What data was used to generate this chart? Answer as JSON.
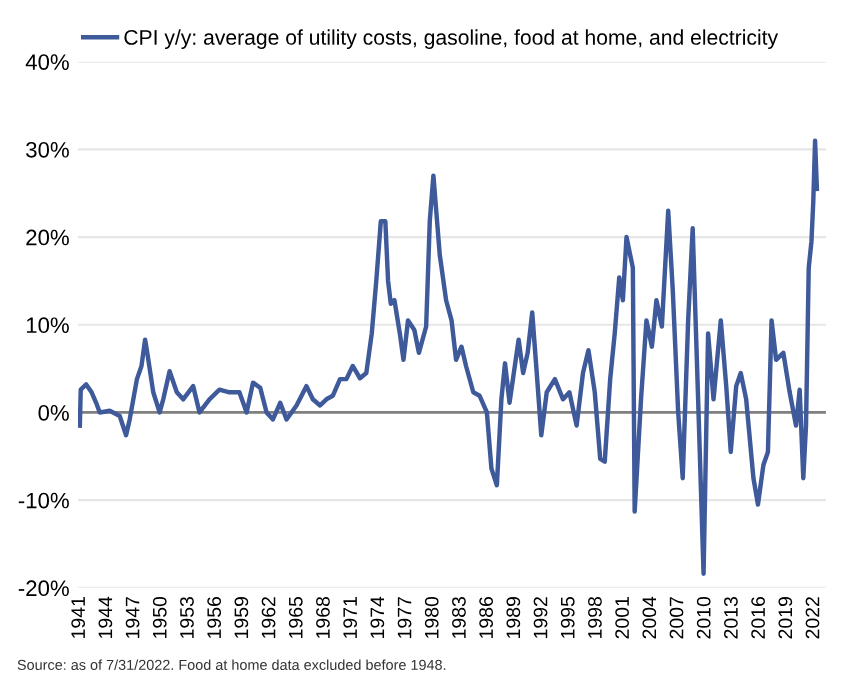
{
  "chart_data": {
    "type": "line",
    "x": [
      1941.0,
      1941.1,
      1941.7,
      1942.3,
      1942.8,
      1943.2,
      1944.3,
      1945.4,
      1946.1,
      1946.5,
      1947.3,
      1947.8,
      1948.2,
      1948.5,
      1949.1,
      1949.8,
      1950.2,
      1950.9,
      1951.7,
      1952.4,
      1953.5,
      1954.2,
      1955.3,
      1956.4,
      1957.5,
      1958.6,
      1959.4,
      1960.1,
      1960.9,
      1961.6,
      1962.3,
      1963.1,
      1963.8,
      1964.9,
      1966.0,
      1966.7,
      1967.5,
      1968.2,
      1968.9,
      1969.7,
      1970.4,
      1971.1,
      1971.9,
      1972.6,
      1973.2,
      1973.7,
      1974.2,
      1974.7,
      1975.0,
      1975.3,
      1975.7,
      1976.3,
      1976.7,
      1977.2,
      1977.9,
      1978.4,
      1979.2,
      1979.6,
      1980.0,
      1980.7,
      1981.4,
      1982.0,
      1982.5,
      1983.1,
      1983.6,
      1984.4,
      1985.1,
      1985.9,
      1986.4,
      1987.0,
      1987.5,
      1987.9,
      1988.4,
      1989.4,
      1989.9,
      1990.4,
      1990.9,
      1991.4,
      1991.9,
      1992.5,
      1993.4,
      1994.3,
      1995.0,
      1995.8,
      1996.5,
      1997.1,
      1997.8,
      1998.4,
      1998.9,
      1999.5,
      2000.0,
      2000.5,
      2000.9,
      2001.3,
      2002.0,
      2002.2,
      2002.9,
      2003.5,
      2004.1,
      2004.6,
      2005.2,
      2005.9,
      2006.4,
      2007.0,
      2007.5,
      2008.1,
      2008.6,
      2009.2,
      2009.8,
      2010.3,
      2010.9,
      2011.7,
      2012.3,
      2012.8,
      2013.4,
      2013.9,
      2014.5,
      2015.3,
      2015.8,
      2016.4,
      2016.9,
      2017.3,
      2017.8,
      2018.6,
      2019.3,
      2020.0,
      2020.4,
      2020.8,
      2021.1,
      2021.4,
      2021.7,
      2021.9,
      2022.1,
      2022.3
    ],
    "series": [
      {
        "name": "CPI y/y: average of utility costs, gasoline, food at home, and electricity",
        "color": "#3f5a9a",
        "values": [
          -1.5,
          2.6,
          3.2,
          2.3,
          1.1,
          0,
          0.2,
          -0.4,
          -2.6,
          -0.8,
          3.8,
          5.3,
          8.3,
          6.4,
          2.3,
          0,
          1.5,
          4.7,
          2.3,
          1.5,
          3.0,
          0,
          1.5,
          2.6,
          2.3,
          2.3,
          0,
          3.4,
          2.8,
          0,
          -0.8,
          1.1,
          -0.8,
          0.8,
          3.0,
          1.5,
          0.8,
          1.5,
          1.9,
          3.8,
          3.8,
          5.3,
          3.9,
          4.5,
          9.0,
          15,
          21.8,
          21.8,
          15,
          12.4,
          12.8,
          9.0,
          6.0,
          10.5,
          9.4,
          6.8,
          9.8,
          21.8,
          27,
          18,
          12.8,
          10.5,
          6,
          7.5,
          5.3,
          2.3,
          1.9,
          0,
          -6.4,
          -8.3,
          1.5,
          5.6,
          1.1,
          8.3,
          4.5,
          6.8,
          11.4,
          4.5,
          -2.6,
          2.3,
          3.8,
          1.5,
          2.3,
          -1.5,
          4.5,
          7.1,
          2.3,
          -5.3,
          -5.6,
          3.8,
          9.0,
          15.4,
          12.8,
          20,
          16.5,
          -11.3,
          1.5,
          10.5,
          7.5,
          12.8,
          9.8,
          23,
          14,
          0,
          -7.5,
          10.5,
          21,
          1.5,
          -18.4,
          9,
          1.5,
          10.5,
          3,
          -4.5,
          3,
          4.5,
          1.5,
          -7.5,
          -10.5,
          -6,
          -4.5,
          10.5,
          6,
          6.8,
          2.3,
          -1.5,
          2.6,
          -7.5,
          -1.5,
          16.5,
          19.5,
          24,
          31,
          25.5
        ]
      }
    ],
    "xlim": [
      1940.8,
      2023.3
    ],
    "xticks": [
      1941,
      1944,
      1947,
      1950,
      1953,
      1956,
      1959,
      1962,
      1965,
      1968,
      1971,
      1974,
      1977,
      1980,
      1983,
      1986,
      1989,
      1992,
      1995,
      1998,
      2001,
      2004,
      2007,
      2010,
      2013,
      2016,
      2019,
      2022
    ],
    "ylim": [
      -20,
      40
    ],
    "yticks": [
      {
        "value": -20,
        "label": "-20%"
      },
      {
        "value": -10,
        "label": "-10%"
      },
      {
        "value": 0,
        "label": "0%"
      },
      {
        "value": 10,
        "label": "10%"
      },
      {
        "value": 20,
        "label": "20%"
      },
      {
        "value": 30,
        "label": "30%"
      },
      {
        "value": 40,
        "label": "40%"
      }
    ],
    "ref_lines": [
      {
        "axis": "y",
        "value": 0,
        "color": "#808080"
      }
    ],
    "grid": "y",
    "legend": "top left",
    "annotations": [
      "Source: as of 7/31/2022. Food at home data excluded before 1948."
    ]
  }
}
